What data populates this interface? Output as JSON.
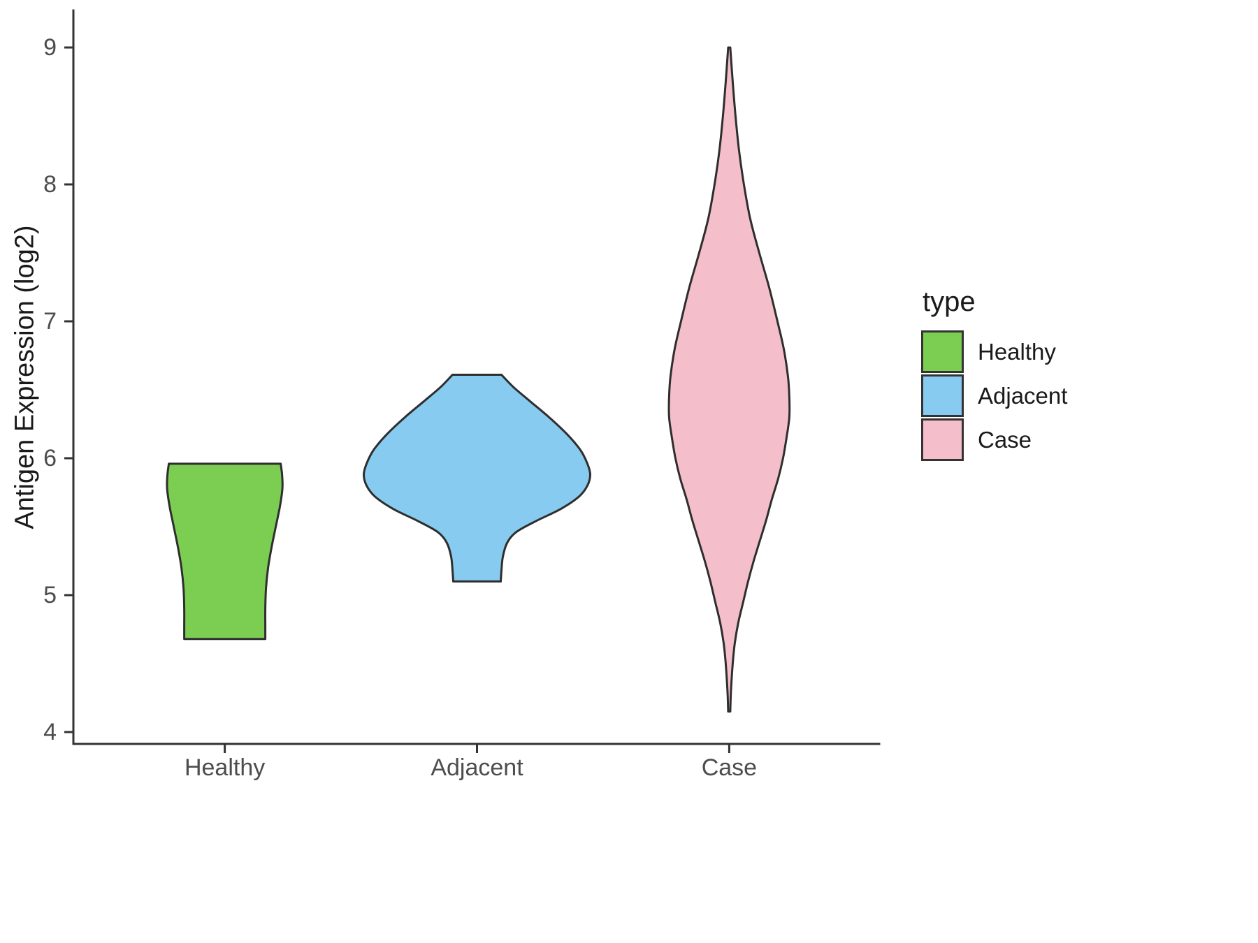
{
  "chart_data": {
    "type": "violin",
    "title": "",
    "xlabel": "",
    "ylabel": "Antigen Expression (log2)",
    "categories": [
      "Healthy",
      "Adjacent",
      "Case"
    ],
    "y_ticks": [
      4,
      5,
      6,
      7,
      8,
      9
    ],
    "ylim": [
      3.85,
      9.25
    ],
    "grid": false,
    "legend_title": "type",
    "legend_position": "right",
    "axis_color": "#333333",
    "outline_color": "#2e2e2e",
    "tick_label_color": "#4d4d4d",
    "series": [
      {
        "name": "Healthy",
        "color": "#7cce52",
        "y_min": 4.68,
        "y_max": 5.96,
        "profile": [
          [
            5.96,
            80
          ],
          [
            5.88,
            82
          ],
          [
            5.78,
            82.5
          ],
          [
            5.65,
            79
          ],
          [
            5.5,
            73
          ],
          [
            5.35,
            67
          ],
          [
            5.2,
            62
          ],
          [
            5.05,
            59
          ],
          [
            4.9,
            58
          ],
          [
            4.78,
            58
          ],
          [
            4.68,
            58
          ]
        ]
      },
      {
        "name": "Adjacent",
        "color": "#88cbf0",
        "y_min": 5.1,
        "y_max": 6.61,
        "profile": [
          [
            6.61,
            35
          ],
          [
            6.52,
            52
          ],
          [
            6.42,
            75
          ],
          [
            6.3,
            103
          ],
          [
            6.18,
            128
          ],
          [
            6.06,
            148
          ],
          [
            5.96,
            158
          ],
          [
            5.88,
            162
          ],
          [
            5.8,
            158
          ],
          [
            5.72,
            146
          ],
          [
            5.63,
            120
          ],
          [
            5.54,
            84
          ],
          [
            5.46,
            56
          ],
          [
            5.38,
            43
          ],
          [
            5.28,
            37
          ],
          [
            5.18,
            35
          ],
          [
            5.1,
            34
          ]
        ]
      },
      {
        "name": "Case",
        "color": "#f4bfca",
        "y_min": 4.15,
        "y_max": 9.0,
        "profile": [
          [
            9.0,
            1.5
          ],
          [
            8.75,
            5
          ],
          [
            8.5,
            9
          ],
          [
            8.25,
            14
          ],
          [
            8.0,
            21
          ],
          [
            7.75,
            30
          ],
          [
            7.5,
            43
          ],
          [
            7.25,
            57
          ],
          [
            7.0,
            69
          ],
          [
            6.8,
            78
          ],
          [
            6.6,
            84
          ],
          [
            6.45,
            86
          ],
          [
            6.3,
            86
          ],
          [
            6.15,
            82
          ],
          [
            6.0,
            77
          ],
          [
            5.85,
            70
          ],
          [
            5.7,
            61
          ],
          [
            5.55,
            53
          ],
          [
            5.4,
            44
          ],
          [
            5.25,
            35
          ],
          [
            5.1,
            27
          ],
          [
            4.95,
            20
          ],
          [
            4.8,
            13
          ],
          [
            4.65,
            8
          ],
          [
            4.5,
            5
          ],
          [
            4.3,
            2.5
          ],
          [
            4.15,
            1.5
          ]
        ]
      }
    ]
  }
}
